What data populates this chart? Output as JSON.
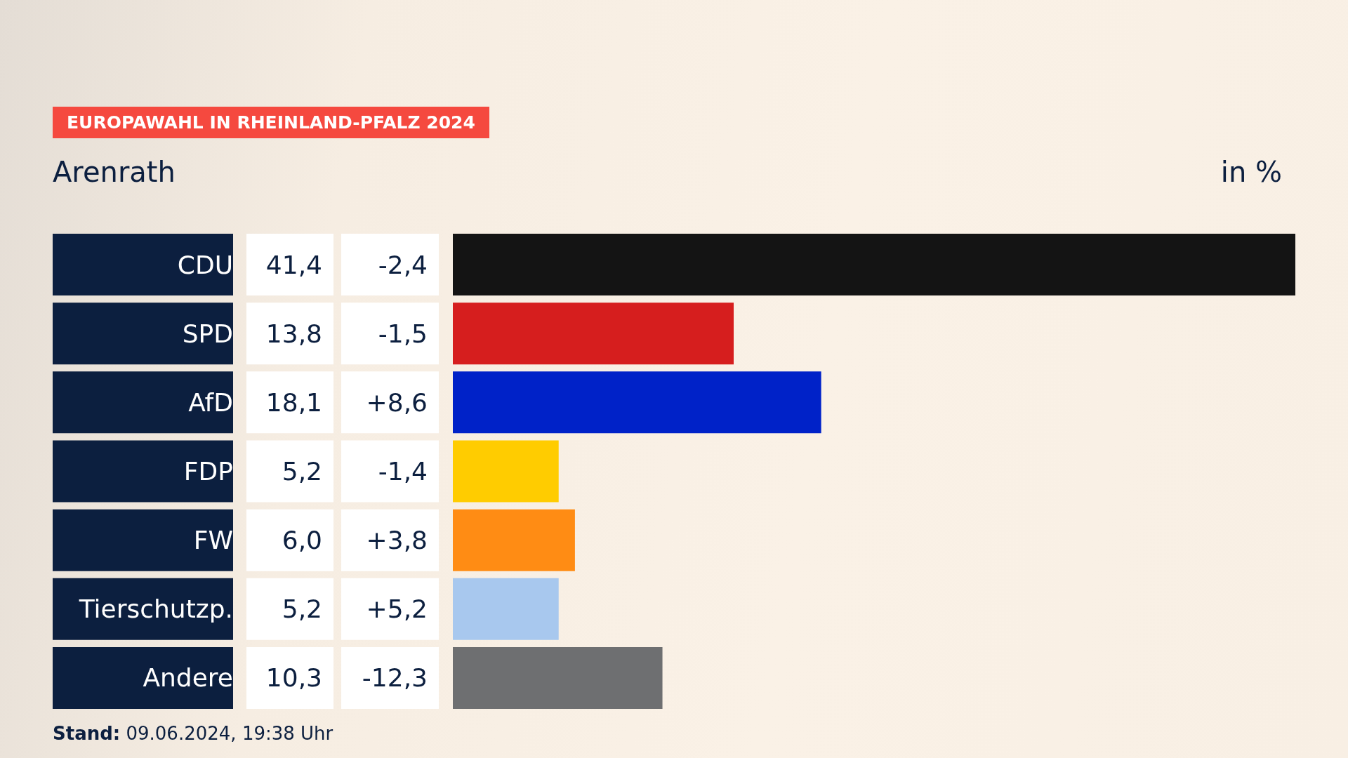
{
  "chart_data": {
    "type": "bar",
    "orientation": "horizontal",
    "title": "EUROPAWAHL IN RHEINLAND-PFALZ 2024",
    "subtitle": "Arenrath",
    "xlabel": "in %",
    "categories": [
      "CDU",
      "SPD",
      "AfD",
      "FDP",
      "FW",
      "Tierschutzp.",
      "Andere"
    ],
    "values": [
      41.4,
      13.8,
      18.1,
      5.2,
      6.0,
      5.2,
      10.3
    ],
    "colors": [
      "#141414",
      "#d61e1e",
      "#0022c8",
      "#ffcc00",
      "#ff8c14",
      "#a8c8ee",
      "#6e6f71"
    ],
    "value_labels": [
      "41,4",
      "13,8",
      "18,1",
      "5,2",
      "6,0",
      "5,2",
      "10,3"
    ],
    "annotations": [
      "-2,4",
      "-1,5",
      "+8,6",
      "-1,4",
      "+3,8",
      "+5,2",
      "-12,3",
      "Stand: 09.06.2024, 19:38 Uhr"
    ]
  }
}
